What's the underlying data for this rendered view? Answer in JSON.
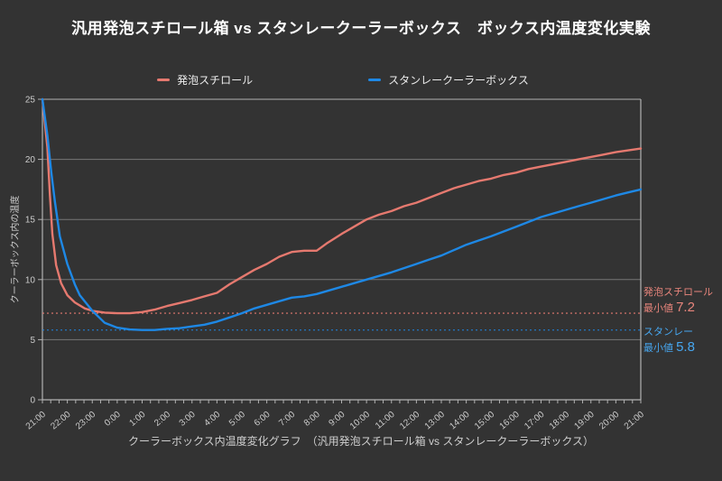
{
  "page": {
    "background": "#333333"
  },
  "title": "汎用発泡スチロール箱 vs スタンレークーラーボックス　ボックス内温度変化実験",
  "legend": [
    {
      "label": "発泡スチロール",
      "color": "#e5796f"
    },
    {
      "label": "スタンレークーラーボックス",
      "color": "#1e88e5"
    }
  ],
  "annotations": {
    "styrofoam": {
      "series": "発泡スチロール",
      "prefix": "最小値",
      "value": "7.2",
      "color": "#e8857c"
    },
    "stanley": {
      "series": "スタンレー",
      "prefix": "最小値",
      "value": "5.8",
      "color": "#47a7f0"
    }
  },
  "caption": "クーラーボックス内温度変化グラフ　（汎用発泡スチロール箱 vs スタンレークーラーボックス）",
  "chart_data": {
    "type": "line",
    "title": "汎用発泡スチロール箱 vs スタンレークーラーボックス　ボックス内温度変化実験",
    "xlabel": "",
    "ylabel": "クーラーボックス内の温度",
    "ylim": [
      0,
      25
    ],
    "yticks": [
      0,
      5,
      10,
      15,
      20,
      25
    ],
    "x_hours_span": 24,
    "x_minor_tick_minutes": 20,
    "xtick_labels": [
      "21:00",
      "22:00",
      "23:00",
      "0:00",
      "1:00",
      "2:00",
      "3:00",
      "4:00",
      "5:00",
      "6:00",
      "7:00",
      "8:00",
      "9:00",
      "10:00",
      "11:00",
      "12:00",
      "13:00",
      "14:00",
      "15:00",
      "16:00",
      "17:00",
      "18:00",
      "19:00",
      "20:00",
      "21:00"
    ],
    "grid": true,
    "legend_position": "top",
    "colors": {
      "grid": "#767676",
      "border": "#b2b2b2",
      "tick_text": "#cccccc"
    },
    "series": [
      {
        "name": "発泡スチロール",
        "color": "#e5796f",
        "min": 7.2,
        "min_label": "発泡スチロール 最小値 7.2",
        "points": [
          [
            0,
            25
          ],
          [
            0.2,
            21
          ],
          [
            0.3,
            17
          ],
          [
            0.4,
            13.8
          ],
          [
            0.55,
            11.2
          ],
          [
            0.75,
            9.7
          ],
          [
            1,
            8.7
          ],
          [
            1.3,
            8.1
          ],
          [
            1.7,
            7.6
          ],
          [
            2,
            7.4
          ],
          [
            2.5,
            7.25
          ],
          [
            3,
            7.2
          ],
          [
            3.5,
            7.2
          ],
          [
            4,
            7.3
          ],
          [
            4.5,
            7.5
          ],
          [
            5,
            7.8
          ],
          [
            5.5,
            8.05
          ],
          [
            6,
            8.3
          ],
          [
            6.5,
            8.6
          ],
          [
            7,
            8.9
          ],
          [
            7.5,
            9.6
          ],
          [
            8,
            10.2
          ],
          [
            8.5,
            10.8
          ],
          [
            9,
            11.3
          ],
          [
            9.5,
            11.9
          ],
          [
            10,
            12.3
          ],
          [
            10.5,
            12.4
          ],
          [
            11,
            12.4
          ],
          [
            11.4,
            13
          ],
          [
            12,
            13.8
          ],
          [
            12.5,
            14.4
          ],
          [
            13,
            15
          ],
          [
            13.5,
            15.4
          ],
          [
            14,
            15.7
          ],
          [
            14.5,
            16.1
          ],
          [
            15,
            16.4
          ],
          [
            15.5,
            16.8
          ],
          [
            16,
            17.2
          ],
          [
            16.5,
            17.6
          ],
          [
            17,
            17.9
          ],
          [
            17.5,
            18.2
          ],
          [
            18,
            18.4
          ],
          [
            18.5,
            18.7
          ],
          [
            19,
            18.9
          ],
          [
            19.5,
            19.2
          ],
          [
            20,
            19.4
          ],
          [
            20.5,
            19.6
          ],
          [
            21,
            19.8
          ],
          [
            21.5,
            20
          ],
          [
            22,
            20.2
          ],
          [
            22.5,
            20.4
          ],
          [
            23,
            20.6
          ],
          [
            23.5,
            20.75
          ],
          [
            24,
            20.9
          ]
        ]
      },
      {
        "name": "スタンレークーラーボックス",
        "color": "#1e88e5",
        "min": 5.8,
        "min_label": "スタンレー 最小値 5.8",
        "points": [
          [
            0,
            25
          ],
          [
            0.2,
            22
          ],
          [
            0.35,
            19
          ],
          [
            0.5,
            16.5
          ],
          [
            0.7,
            13.6
          ],
          [
            1,
            11.3
          ],
          [
            1.3,
            9.6
          ],
          [
            1.5,
            8.7
          ],
          [
            2,
            7.4
          ],
          [
            2.5,
            6.4
          ],
          [
            3,
            6
          ],
          [
            3.5,
            5.85
          ],
          [
            4,
            5.8
          ],
          [
            4.5,
            5.8
          ],
          [
            5,
            5.9
          ],
          [
            5.5,
            5.95
          ],
          [
            6,
            6.1
          ],
          [
            6.5,
            6.25
          ],
          [
            7,
            6.5
          ],
          [
            7.5,
            6.85
          ],
          [
            8,
            7.2
          ],
          [
            8.5,
            7.6
          ],
          [
            9,
            7.9
          ],
          [
            9.5,
            8.2
          ],
          [
            10,
            8.5
          ],
          [
            10.5,
            8.6
          ],
          [
            11,
            8.8
          ],
          [
            11.5,
            9.1
          ],
          [
            12,
            9.4
          ],
          [
            12.5,
            9.7
          ],
          [
            13,
            10
          ],
          [
            13.5,
            10.3
          ],
          [
            14,
            10.6
          ],
          [
            14.5,
            10.95
          ],
          [
            15,
            11.3
          ],
          [
            15.5,
            11.65
          ],
          [
            16,
            12
          ],
          [
            16.5,
            12.45
          ],
          [
            17,
            12.9
          ],
          [
            17.5,
            13.25
          ],
          [
            18,
            13.6
          ],
          [
            18.5,
            14
          ],
          [
            19,
            14.4
          ],
          [
            19.5,
            14.8
          ],
          [
            20,
            15.2
          ],
          [
            20.5,
            15.5
          ],
          [
            21,
            15.8
          ],
          [
            21.5,
            16.1
          ],
          [
            22,
            16.4
          ],
          [
            22.5,
            16.7
          ],
          [
            23,
            17
          ],
          [
            23.5,
            17.25
          ],
          [
            24,
            17.5
          ]
        ]
      }
    ]
  }
}
